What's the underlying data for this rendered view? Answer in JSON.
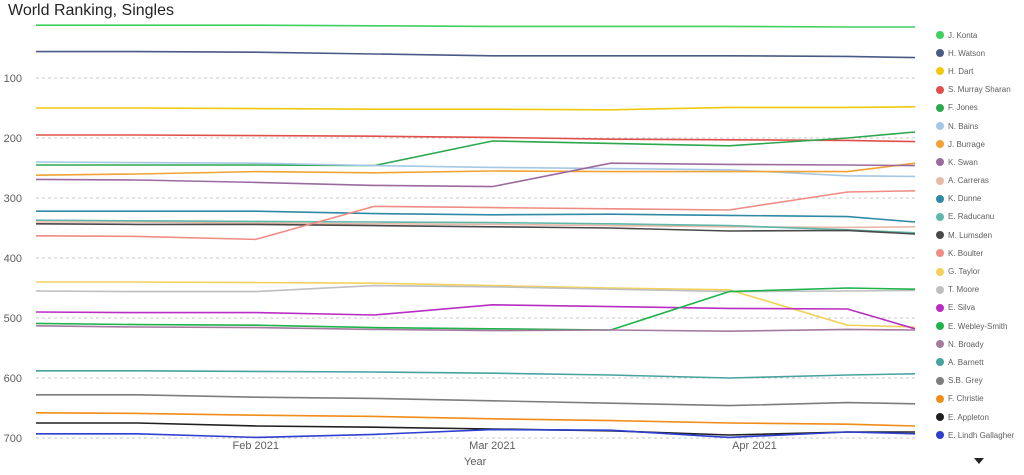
{
  "chart_data": {
    "type": "line",
    "title": "World Ranking, Singles",
    "xlabel": "Year",
    "ylabel": "",
    "x_range": [
      "2021-01-06",
      "2021-04-20"
    ],
    "ylim": [
      700,
      0
    ],
    "y_reversed": true,
    "y_ticks": [
      100,
      200,
      300,
      400,
      500,
      600,
      700
    ],
    "x_ticks": [
      {
        "label": "Feb 2021",
        "date": "2021-02-01"
      },
      {
        "label": "Mar 2021",
        "date": "2021-03-01"
      },
      {
        "label": "Apr 2021",
        "date": "2021-04-01"
      }
    ],
    "grid": "horizontal dashed",
    "legend_position": "right",
    "x": [
      "2021-01-06",
      "2021-01-18",
      "2021-02-01",
      "2021-02-15",
      "2021-03-01",
      "2021-03-15",
      "2021-03-29",
      "2021-04-12",
      "2021-04-20"
    ],
    "series": [
      {
        "name": "J. Konta",
        "color": "#3fd15f",
        "values": [
          12,
          12,
          12,
          13,
          14,
          14,
          14,
          15,
          15
        ]
      },
      {
        "name": "H. Watson",
        "color": "#4a5a86",
        "values": [
          56,
          56,
          57,
          60,
          63,
          63,
          63,
          64,
          66
        ]
      },
      {
        "name": "H. Dart",
        "color": "#f2c80f",
        "values": [
          150,
          150,
          151,
          152,
          152,
          153,
          149,
          149,
          148
        ]
      },
      {
        "name": "S. Murray Sharan",
        "color": "#e0504a",
        "values": [
          195,
          195,
          196,
          197,
          199,
          202,
          203,
          204,
          206
        ]
      },
      {
        "name": "F. Jones",
        "color": "#2ca84f",
        "values": [
          245,
          245,
          245,
          246,
          205,
          209,
          213,
          200,
          190
        ]
      },
      {
        "name": "N. Bains",
        "color": "#a5c8e4",
        "values": [
          240,
          241,
          242,
          246,
          249,
          251,
          253,
          263,
          264
        ]
      },
      {
        "name": "J. Burrage",
        "color": "#f0a332",
        "values": [
          262,
          260,
          256,
          258,
          255,
          256,
          256,
          256,
          242
        ]
      },
      {
        "name": "K. Swan",
        "color": "#9b6ba0",
        "values": [
          269,
          270,
          274,
          279,
          281,
          242,
          244,
          245,
          246
        ]
      },
      {
        "name": "A. Carreras",
        "color": "#e8b8a8",
        "values": [
          340,
          340,
          342,
          343,
          344,
          346,
          348,
          349,
          348
        ]
      },
      {
        "name": "K. Dunne",
        "color": "#2f8aa6",
        "values": [
          322,
          322,
          322,
          326,
          328,
          327,
          329,
          331,
          340
        ]
      },
      {
        "name": "E. Raducanu",
        "color": "#5fb8a9",
        "values": [
          337,
          338,
          339,
          340,
          341,
          343,
          346,
          353,
          358
        ]
      },
      {
        "name": "M. Lumsden",
        "color": "#4a4a4a",
        "values": [
          343,
          344,
          344,
          346,
          348,
          350,
          355,
          354,
          360
        ]
      },
      {
        "name": "K. Boulter",
        "color": "#f08c84",
        "values": [
          363,
          364,
          369,
          314,
          316,
          318,
          320,
          290,
          288
        ]
      },
      {
        "name": "G. Taylor",
        "color": "#f2d25a",
        "values": [
          440,
          440,
          441,
          442,
          446,
          450,
          453,
          512,
          515
        ]
      },
      {
        "name": "T. Moore",
        "color": "#bfbfbf",
        "values": [
          455,
          456,
          456,
          446,
          448,
          452,
          456,
          455,
          454
        ]
      },
      {
        "name": "E. Silva",
        "color": "#b92ec2",
        "values": [
          490,
          491,
          491,
          495,
          478,
          481,
          484,
          485,
          518
        ]
      },
      {
        "name": "E. Webley-Smith",
        "color": "#1fb34b",
        "values": [
          509,
          511,
          512,
          516,
          518,
          520,
          456,
          450,
          452
        ]
      },
      {
        "name": "N. Broady",
        "color": "#a57aa0",
        "values": [
          513,
          515,
          516,
          519,
          521,
          520,
          522,
          519,
          520
        ]
      },
      {
        "name": "A. Barnett",
        "color": "#48a3a0",
        "values": [
          588,
          588,
          589,
          590,
          592,
          595,
          600,
          595,
          593
        ]
      },
      {
        "name": "S.B. Grey",
        "color": "#7d7d7d",
        "values": [
          628,
          628,
          632,
          634,
          638,
          642,
          646,
          641,
          643
        ]
      },
      {
        "name": "F. Christie",
        "color": "#f28c18",
        "values": [
          658,
          659,
          662,
          664,
          668,
          671,
          675,
          677,
          680
        ]
      },
      {
        "name": "E. Appleton",
        "color": "#202020",
        "values": [
          675,
          675,
          680,
          682,
          685,
          688,
          695,
          690,
          690
        ]
      },
      {
        "name": "E. Lindh Gallagher",
        "color": "#2f3fd0",
        "values": [
          693,
          693,
          699,
          694,
          686,
          687,
          699,
          690,
          693
        ]
      }
    ]
  }
}
